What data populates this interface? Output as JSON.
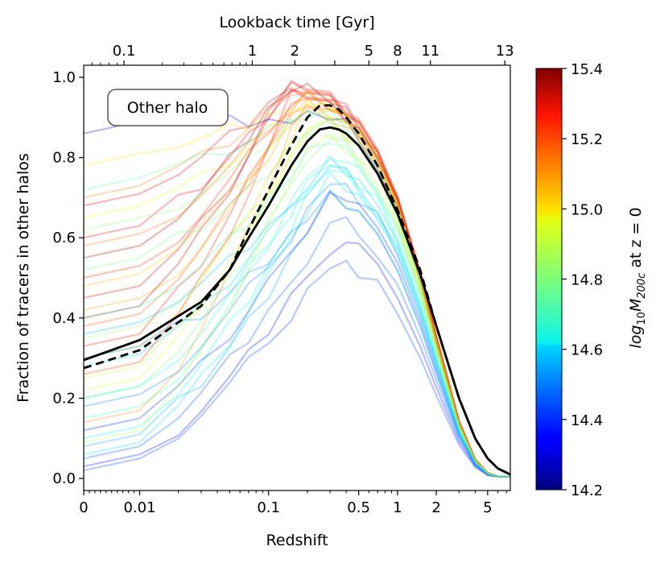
{
  "chart_data": {
    "type": "line",
    "xlabel": "Redshift",
    "x2label": "Lookback time [Gyr]",
    "ylabel": "Fraction of tracers in other halos",
    "xscale": "symlog",
    "xlim": [
      0,
      7.5
    ],
    "ylim": [
      -0.03,
      1.03
    ],
    "x_ticks": [
      0,
      0.01,
      0.1,
      0.5,
      1,
      2,
      5
    ],
    "x_tick_labels": [
      "0",
      "0.01",
      "0.1",
      "0.5",
      "1",
      "2",
      "5"
    ],
    "y_ticks": [
      0.0,
      0.2,
      0.4,
      0.6,
      0.8,
      1.0
    ],
    "y_tick_labels": [
      "0.0",
      "0.2",
      "0.4",
      "0.6",
      "0.8",
      "1.0"
    ],
    "top_ticks_z": [
      0.0072,
      0.0748,
      0.16,
      0.326,
      0.6,
      1.0,
      1.8,
      6.8
    ],
    "top_tick_labels": [
      "0.1",
      "1",
      "2",
      "5",
      "8",
      "11",
      "13"
    ],
    "top_tick_labels_z": [
      0.0072,
      0.0748,
      0.16,
      0.6,
      1.0,
      1.8,
      6.8
    ],
    "annotation": "Other halo",
    "colorbar": {
      "label": "log10M200c at z = 0",
      "label_main": "log",
      "label_sub1": "10",
      "label_mid": "M",
      "label_sub2": "200c",
      "label_end": " at z = 0",
      "range": [
        14.2,
        15.4
      ],
      "ticks": [
        14.2,
        14.4,
        14.6,
        14.8,
        15.0,
        15.2,
        15.4
      ],
      "tick_labels": [
        "14.2",
        "14.4",
        "14.6",
        "14.8",
        "15.0",
        "15.2",
        "15.4"
      ],
      "colormap": "jet"
    },
    "series": [
      {
        "style": "solid",
        "color": "#000000",
        "x": [
          0,
          0.01,
          0.03,
          0.05,
          0.07,
          0.1,
          0.15,
          0.2,
          0.25,
          0.3,
          0.35,
          0.4,
          0.5,
          0.7,
          1.0,
          1.5,
          2.0,
          3.0,
          4.0,
          5.0,
          6.0,
          7.5
        ],
        "y": [
          0.295,
          0.345,
          0.44,
          0.52,
          0.6,
          0.68,
          0.78,
          0.84,
          0.87,
          0.875,
          0.87,
          0.86,
          0.83,
          0.76,
          0.66,
          0.51,
          0.38,
          0.2,
          0.1,
          0.05,
          0.025,
          0.01
        ]
      },
      {
        "style": "dashed",
        "color": "#000000",
        "x": [
          0,
          0.01,
          0.03,
          0.05,
          0.07,
          0.1,
          0.15,
          0.2,
          0.25,
          0.3,
          0.35,
          0.4,
          0.5,
          0.7,
          1.0,
          1.5,
          2.0,
          3.0,
          4.0,
          5.0,
          6.0,
          7.5
        ],
        "y": [
          0.275,
          0.32,
          0.43,
          0.52,
          0.62,
          0.72,
          0.83,
          0.9,
          0.93,
          0.93,
          0.92,
          0.9,
          0.86,
          0.78,
          0.67,
          0.52,
          0.38,
          0.2,
          0.1,
          0.05,
          0.025,
          0.01
        ]
      }
    ],
    "tracer_halos": [
      {
        "m": 15.35,
        "y0": 0.55,
        "peak": 0.98
      },
      {
        "m": 15.3,
        "y0": 0.45,
        "peak": 0.97
      },
      {
        "m": 15.25,
        "y0": 0.6,
        "peak": 0.98
      },
      {
        "m": 15.2,
        "y0": 0.5,
        "peak": 0.96
      },
      {
        "m": 15.15,
        "y0": 0.38,
        "peak": 0.95
      },
      {
        "m": 15.1,
        "y0": 0.7,
        "peak": 0.97
      },
      {
        "m": 15.05,
        "y0": 0.42,
        "peak": 0.94
      },
      {
        "m": 15.0,
        "y0": 0.3,
        "peak": 0.93
      },
      {
        "m": 14.95,
        "y0": 0.65,
        "peak": 0.95
      },
      {
        "m": 14.9,
        "y0": 0.25,
        "peak": 0.9
      },
      {
        "m": 14.85,
        "y0": 0.35,
        "peak": 0.88
      },
      {
        "m": 14.8,
        "y0": 0.2,
        "peak": 0.86
      },
      {
        "m": 14.75,
        "y0": 0.72,
        "peak": 0.92
      },
      {
        "m": 14.7,
        "y0": 0.15,
        "peak": 0.82
      },
      {
        "m": 14.65,
        "y0": 0.1,
        "peak": 0.78
      },
      {
        "m": 14.6,
        "y0": 0.28,
        "peak": 0.8
      },
      {
        "m": 14.55,
        "y0": 0.08,
        "peak": 0.7
      },
      {
        "m": 14.5,
        "y0": 0.18,
        "peak": 0.75
      },
      {
        "m": 14.45,
        "y0": 0.05,
        "peak": 0.65
      },
      {
        "m": 14.4,
        "y0": 0.12,
        "peak": 0.72
      },
      {
        "m": 14.35,
        "y0": 0.03,
        "peak": 0.6
      },
      {
        "m": 14.3,
        "y0": 0.86,
        "peak": 0.9
      },
      {
        "m": 15.32,
        "y0": 0.4,
        "peak": 0.99
      },
      {
        "m": 15.22,
        "y0": 0.33,
        "peak": 0.97
      },
      {
        "m": 15.12,
        "y0": 0.58,
        "peak": 0.96
      },
      {
        "m": 15.02,
        "y0": 0.48,
        "peak": 0.94
      },
      {
        "m": 14.92,
        "y0": 0.22,
        "peak": 0.9
      },
      {
        "m": 14.82,
        "y0": 0.62,
        "peak": 0.93
      },
      {
        "m": 14.72,
        "y0": 0.4,
        "peak": 0.85
      },
      {
        "m": 14.62,
        "y0": 0.06,
        "peak": 0.76
      },
      {
        "m": 14.52,
        "y0": 0.3,
        "peak": 0.7
      },
      {
        "m": 14.42,
        "y0": 0.02,
        "peak": 0.55
      },
      {
        "m": 15.28,
        "y0": 0.68,
        "peak": 0.98
      },
      {
        "m": 15.18,
        "y0": 0.26,
        "peak": 0.96
      },
      {
        "m": 15.08,
        "y0": 0.14,
        "peak": 0.93
      },
      {
        "m": 14.98,
        "y0": 0.78,
        "peak": 0.95
      },
      {
        "m": 14.88,
        "y0": 0.09,
        "peak": 0.87
      },
      {
        "m": 14.78,
        "y0": 0.52,
        "peak": 0.89
      },
      {
        "m": 14.68,
        "y0": 0.2,
        "peak": 0.8
      },
      {
        "m": 14.58,
        "y0": 0.36,
        "peak": 0.78
      }
    ]
  }
}
